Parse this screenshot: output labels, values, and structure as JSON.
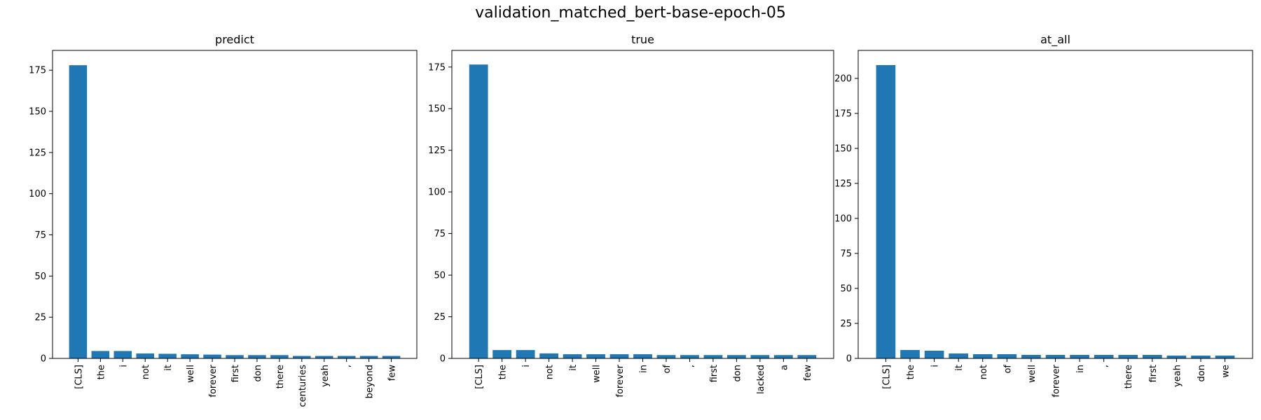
{
  "suptitle": "validation_matched_bert-base-epoch-05",
  "colors": {
    "bar": "#1f77b4",
    "axis": "#000000",
    "background": "#ffffff"
  },
  "chart_data": [
    {
      "type": "bar",
      "title": "predict",
      "categories": [
        "[CLS]",
        "the",
        "i",
        "not",
        "it",
        "well",
        "forever",
        "first",
        "don",
        "there",
        "centuries",
        "yeah",
        ",",
        "beyond",
        "few"
      ],
      "values": [
        178,
        4.5,
        4.5,
        3,
        2.8,
        2.5,
        2.3,
        2,
        2,
        2,
        1.5,
        1.5,
        1.5,
        1.5,
        1.5
      ],
      "yticks": [
        0,
        25,
        50,
        75,
        100,
        125,
        150,
        175
      ],
      "ylim": [
        0,
        187
      ],
      "xlabel": "",
      "ylabel": "",
      "grid": false
    },
    {
      "type": "bar",
      "title": "true",
      "categories": [
        "[CLS]",
        "the",
        "i",
        "not",
        "it",
        "well",
        "forever",
        "in",
        "of",
        ",",
        "first",
        "don",
        "lacked",
        "a",
        "few"
      ],
      "values": [
        176.5,
        5,
        5,
        3,
        2.5,
        2.5,
        2.5,
        2.5,
        2,
        2,
        2,
        2,
        2,
        2,
        2
      ],
      "yticks": [
        0,
        25,
        50,
        75,
        100,
        125,
        150,
        175
      ],
      "ylim": [
        0,
        185
      ],
      "xlabel": "",
      "ylabel": "",
      "grid": false
    },
    {
      "type": "bar",
      "title": "at_all",
      "categories": [
        "[CLS]",
        "the",
        "i",
        "it",
        "not",
        "of",
        "well",
        "forever",
        "in",
        ",",
        "there",
        "first",
        "yeah",
        "don",
        "we"
      ],
      "values": [
        209.5,
        6,
        5.5,
        3.5,
        3,
        3,
        2.5,
        2.5,
        2.5,
        2.5,
        2.5,
        2.5,
        2,
        2,
        2
      ],
      "yticks": [
        0,
        25,
        50,
        75,
        100,
        125,
        150,
        175,
        200
      ],
      "ylim": [
        0,
        220
      ],
      "xlabel": "",
      "ylabel": "",
      "grid": false
    }
  ]
}
